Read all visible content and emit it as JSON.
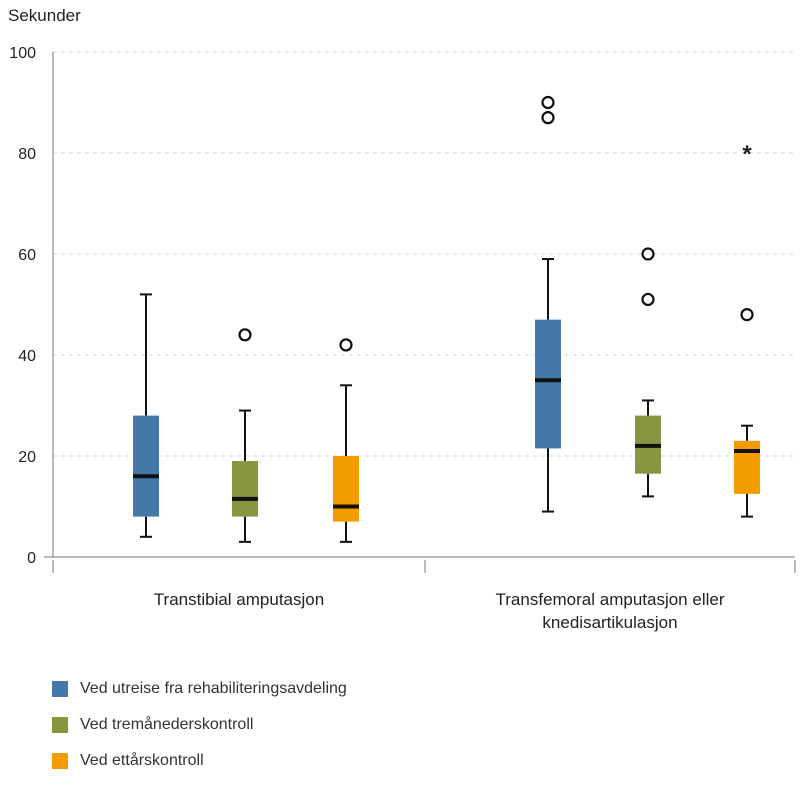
{
  "chart_data": {
    "type": "boxplot",
    "ylabel": "Sekunder",
    "ylim": [
      0,
      100
    ],
    "yticks": [
      0,
      20,
      40,
      60,
      80,
      100
    ],
    "grid": true,
    "categories": [
      "Transtibial amputasjon",
      "Transfemoral amputasjon eller knedisartikulasjon"
    ],
    "category_lines": [
      [
        "Transtibial amputasjon"
      ],
      [
        "Transfemoral amputasjon eller",
        "knedisartikulasjon"
      ]
    ],
    "series": [
      {
        "name": "Ved utreise fra rehabiliteringsavdeling",
        "color": "#4577a9",
        "boxes": [
          {
            "whisker_low": 4,
            "q1": 8,
            "median": 16,
            "q3": 28,
            "whisker_high": 52,
            "outliers": [],
            "extremes": []
          },
          {
            "whisker_low": 9,
            "q1": 21.5,
            "median": 35,
            "q3": 47,
            "whisker_high": 59,
            "outliers": [
              87,
              90
            ],
            "extremes": []
          }
        ]
      },
      {
        "name": "Ved tremånederskontroll",
        "color": "#879641",
        "boxes": [
          {
            "whisker_low": 3,
            "q1": 8,
            "median": 11.5,
            "q3": 19,
            "whisker_high": 29,
            "outliers": [
              44
            ],
            "extremes": []
          },
          {
            "whisker_low": 12,
            "q1": 16.5,
            "median": 22,
            "q3": 28,
            "whisker_high": 31,
            "outliers": [
              51,
              60
            ],
            "extremes": []
          }
        ]
      },
      {
        "name": "Ved ettårskontroll",
        "color": "#f39c00",
        "boxes": [
          {
            "whisker_low": 3,
            "q1": 7,
            "median": 10,
            "q3": 20,
            "whisker_high": 34,
            "outliers": [
              42
            ],
            "extremes": []
          },
          {
            "whisker_low": 8,
            "q1": 12.5,
            "median": 21,
            "q3": 23,
            "whisker_high": 26,
            "outliers": [
              48
            ],
            "extremes": [
              80
            ]
          }
        ]
      }
    ],
    "extreme_symbol": "*"
  }
}
